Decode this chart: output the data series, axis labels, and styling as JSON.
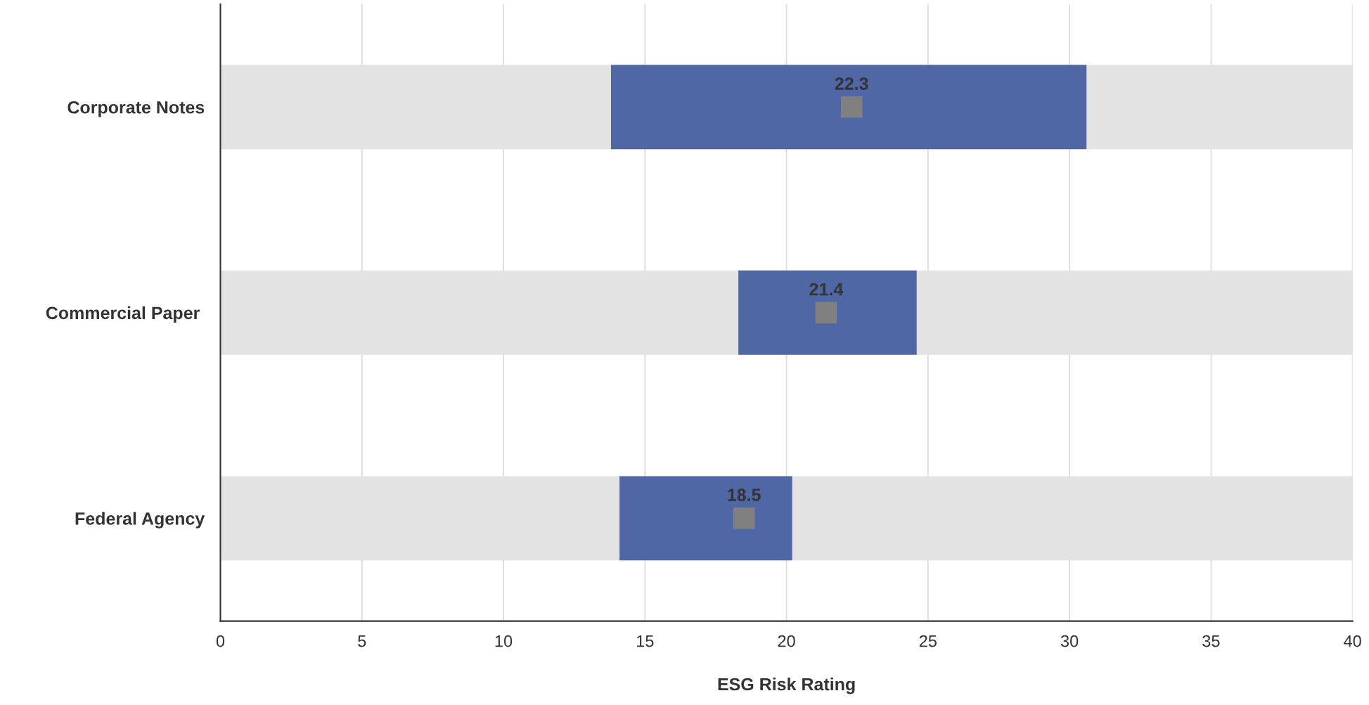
{
  "chart_data": {
    "type": "bar",
    "orientation": "horizontal",
    "xlabel": "ESG Risk Rating",
    "categories": [
      "Corporate Notes",
      "Commercial Paper ",
      "Federal Agency"
    ],
    "series": [
      {
        "color": "#e3e3e3",
        "base": [
          0,
          0,
          0
        ],
        "values": [
          40,
          40,
          40
        ]
      },
      {
        "color": "#4f67a5",
        "base": [
          13.8,
          18.3,
          14.1
        ],
        "values": [
          16.8,
          6.3,
          6.1
        ]
      },
      {
        "type": "scatter",
        "color": "#808080",
        "marker": "square",
        "data_labels": true,
        "values": [
          22.3,
          21.4,
          18.5
        ]
      }
    ],
    "xlim": [
      0,
      40
    ],
    "xticks": [
      0,
      5,
      10,
      15,
      20,
      25,
      30,
      35,
      40
    ],
    "grid": "x",
    "legend": false
  }
}
